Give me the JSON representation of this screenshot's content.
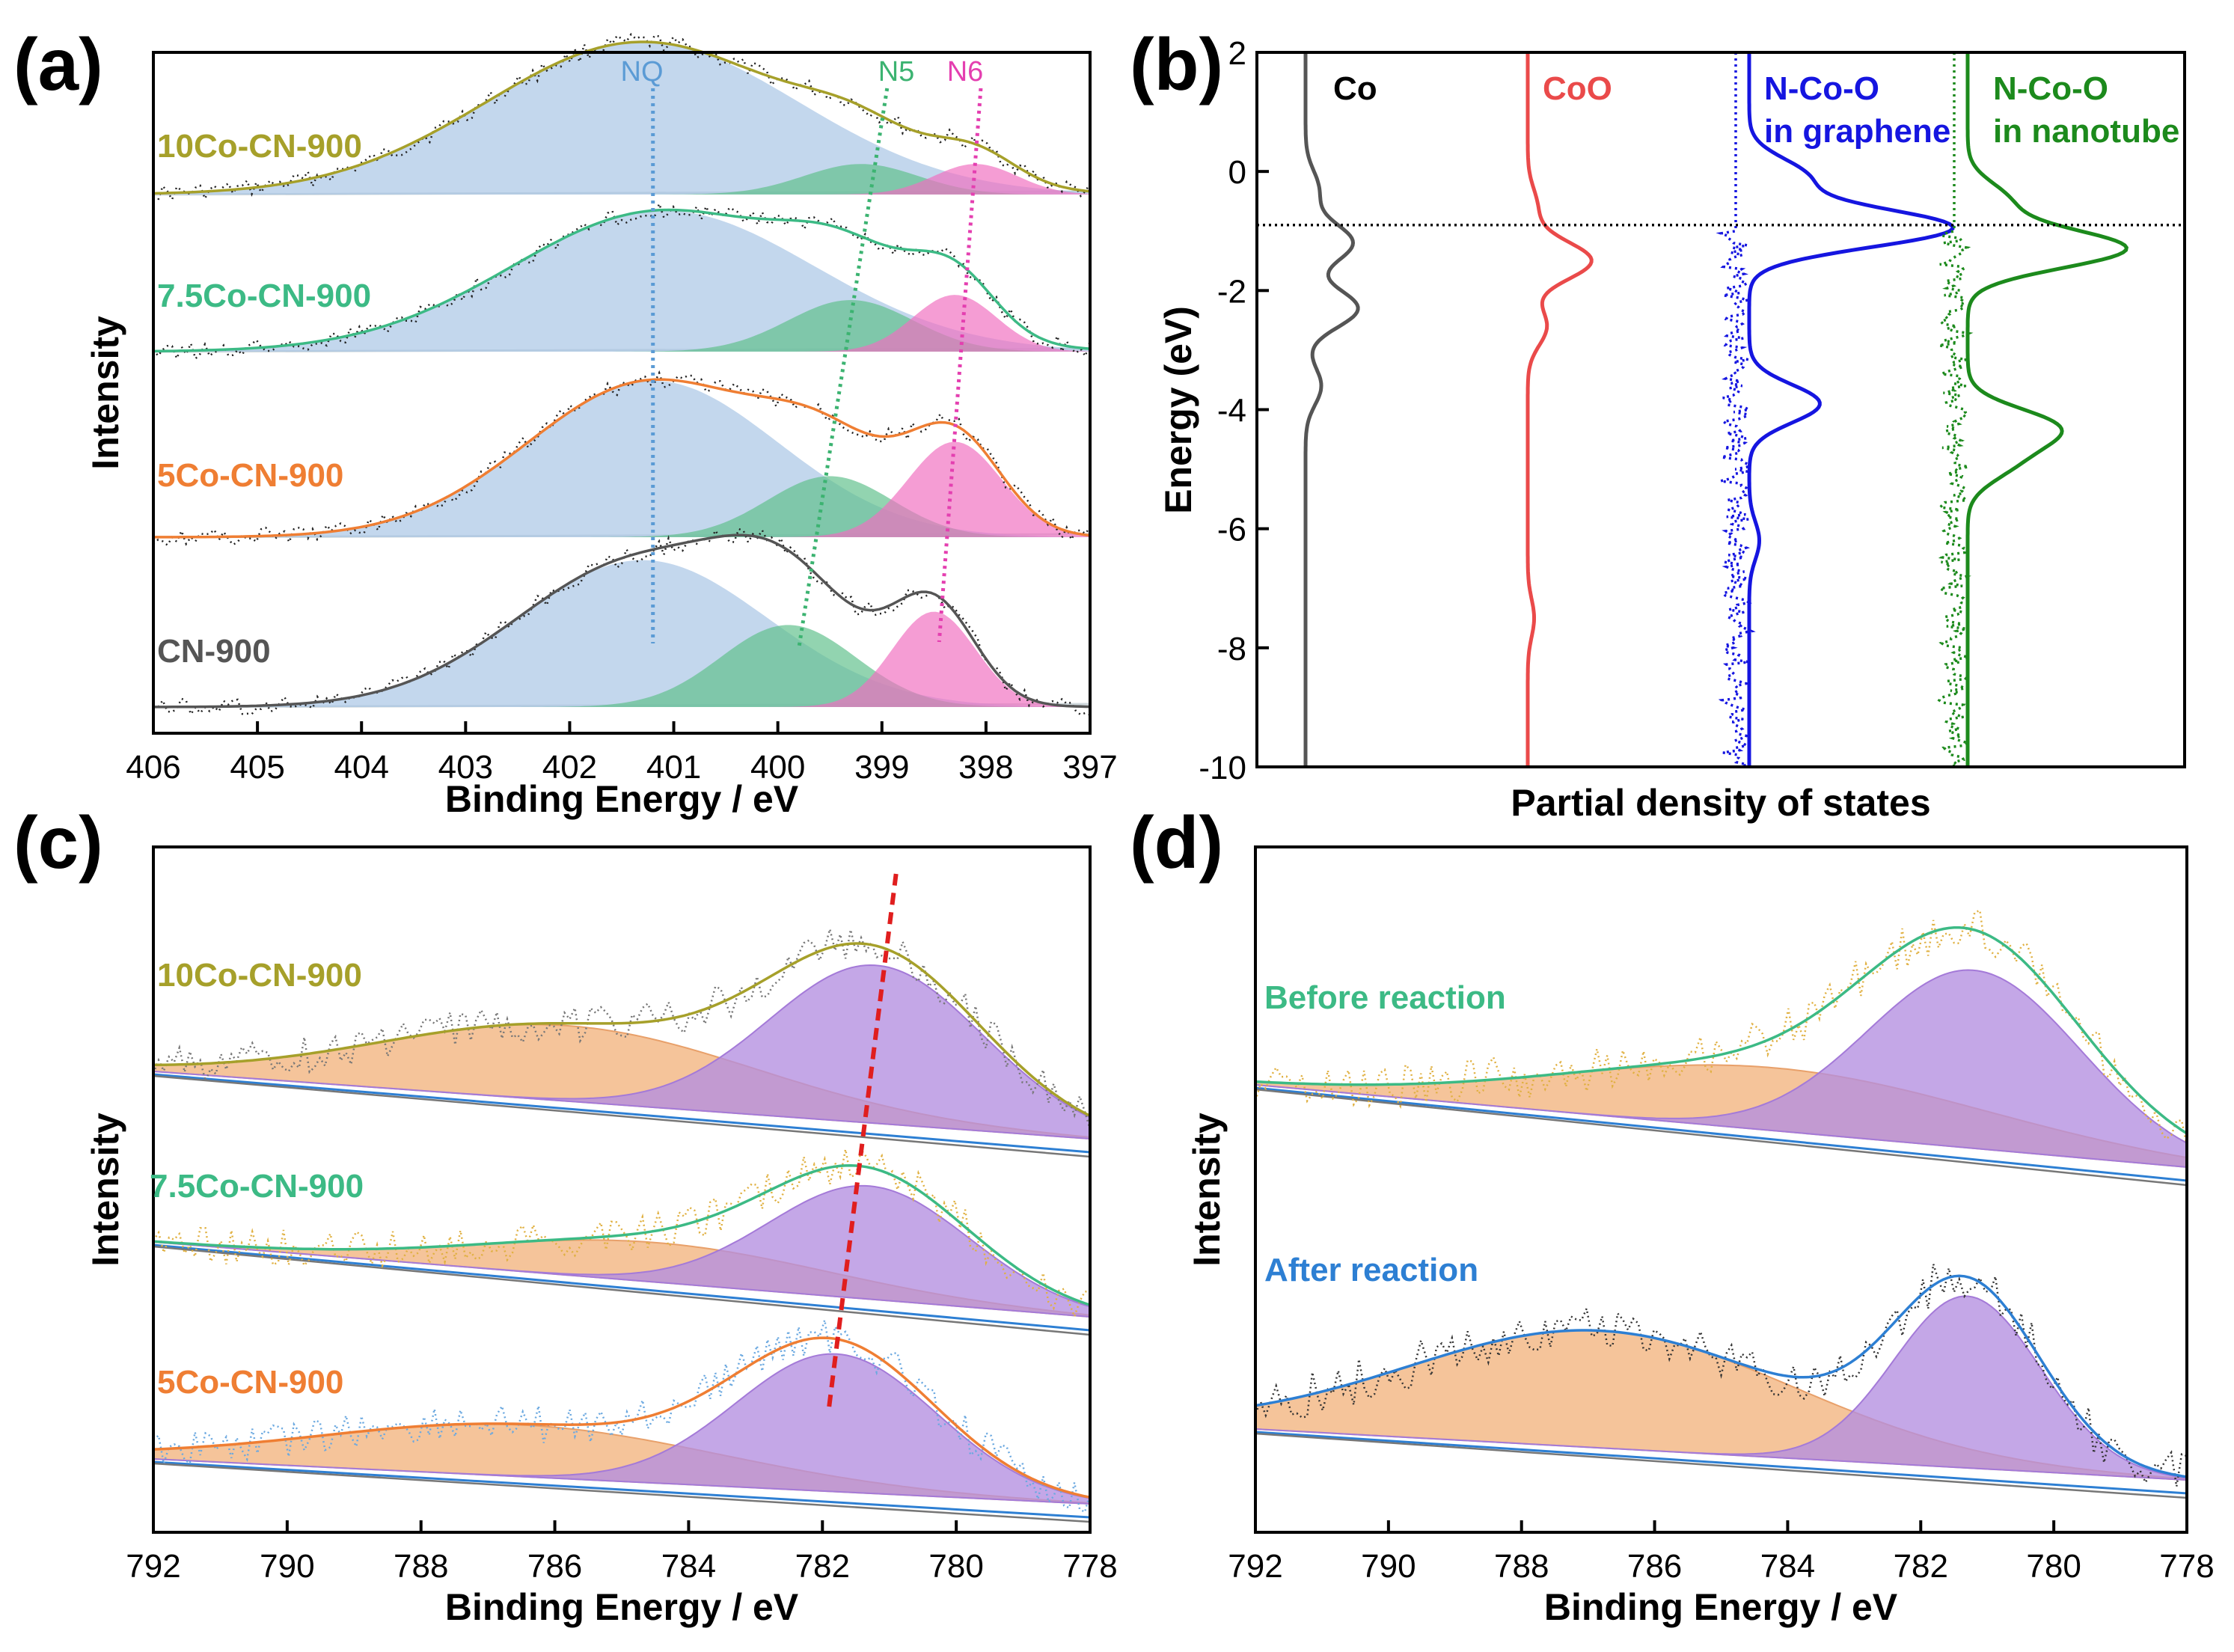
{
  "figure": {
    "panels": [
      {
        "id": "a",
        "label": "(a)"
      },
      {
        "id": "b",
        "label": "(b)"
      },
      {
        "id": "c",
        "label": "(c)"
      },
      {
        "id": "d",
        "label": "(d)"
      }
    ]
  },
  "colors": {
    "nq_fill": "#a7c4e5",
    "n5_fill": "#5fbf8a",
    "n6_fill": "#f06fc0",
    "co_peak_fill": "#b48ee0",
    "sat_fill": "#f2b37e",
    "10co": "#a6a02a",
    "7.5co": "#3cba85",
    "5co": "#ef7e33",
    "cn": "#555555",
    "blue": "#2d7fd3",
    "dos_co": "#555555",
    "dos_coo": "#ea4a4a",
    "dos_graphene": "#1515e0",
    "dos_nanotube": "#1c8a1c"
  },
  "chart_data": [
    {
      "id": "a",
      "type": "line",
      "xlabel": "Binding Energy / eV",
      "ylabel": "Intensity",
      "xlim": [
        406,
        397
      ],
      "xticks": [
        "406",
        "405",
        "404",
        "403",
        "402",
        "401",
        "400",
        "399",
        "398",
        "397"
      ],
      "peak_labels": [
        {
          "text": "NQ"
        },
        {
          "text": "N5"
        },
        {
          "text": "N6"
        }
      ],
      "series": [
        {
          "name": "10Co-CN-900",
          "components": [
            {
              "peak": "NQ",
              "center": 401.3,
              "sigma": 1.5,
              "amp": 0.85
            },
            {
              "peak": "N5",
              "center": 399.2,
              "sigma": 0.55,
              "amp": 0.17
            },
            {
              "peak": "N6",
              "center": 398.1,
              "sigma": 0.4,
              "amp": 0.17
            }
          ]
        },
        {
          "name": "7.5Co-CN-900",
          "components": [
            {
              "peak": "NQ",
              "center": 401.1,
              "sigma": 1.45,
              "amp": 0.82
            },
            {
              "peak": "N5",
              "center": 399.3,
              "sigma": 0.6,
              "amp": 0.3
            },
            {
              "peak": "N6",
              "center": 398.3,
              "sigma": 0.4,
              "amp": 0.33
            }
          ]
        },
        {
          "name": "5Co-CN-900",
          "components": [
            {
              "peak": "NQ",
              "center": 401.2,
              "sigma": 1.2,
              "amp": 0.82
            },
            {
              "peak": "N5",
              "center": 399.5,
              "sigma": 0.6,
              "amp": 0.32
            },
            {
              "peak": "N6",
              "center": 398.3,
              "sigma": 0.45,
              "amp": 0.5
            }
          ]
        },
        {
          "name": "CN-900",
          "components": [
            {
              "peak": "NQ",
              "center": 401.3,
              "sigma": 1.2,
              "amp": 0.77
            },
            {
              "peak": "N5",
              "center": 399.9,
              "sigma": 0.65,
              "amp": 0.43
            },
            {
              "peak": "N6",
              "center": 398.5,
              "sigma": 0.4,
              "amp": 0.5
            }
          ]
        }
      ]
    },
    {
      "id": "b",
      "type": "line",
      "xlabel": "Partial density of states",
      "ylabel": "Energy (eV)",
      "ylim": [
        -10,
        2
      ],
      "yticks": [
        "2",
        "0",
        "-2",
        "-4",
        "-6",
        "-8",
        "-10"
      ],
      "fermi_level": -0.9,
      "series": [
        {
          "name": "Co",
          "peaks": [
            {
              "energy": -0.3,
              "height": 0.25
            },
            {
              "energy": -1.2,
              "height": 0.9
            },
            {
              "energy": -2.3,
              "height": 1.0
            },
            {
              "energy": -3.6,
              "height": 0.3
            }
          ]
        },
        {
          "name": "CoO",
          "peaks": [
            {
              "energy": -0.6,
              "height": 0.15
            },
            {
              "energy": -1.5,
              "height": 1.0
            },
            {
              "energy": -2.6,
              "height": 0.3
            },
            {
              "energy": -7.5,
              "height": 0.1
            }
          ]
        },
        {
          "name": "N-Co-O in graphene",
          "label_lines": [
            "N-Co-O",
            "in graphene"
          ],
          "peaks": [
            {
              "energy": -0.1,
              "height": 0.28
            },
            {
              "energy": -0.95,
              "height": 1.0
            },
            {
              "energy": -3.9,
              "height": 0.35
            },
            {
              "energy": -6.2,
              "height": 0.05
            }
          ]
        },
        {
          "name": "N-Co-O in nanotube",
          "label_lines": [
            "N-Co-O",
            "in nanotube"
          ],
          "peaks": [
            {
              "energy": -0.5,
              "height": 0.25
            },
            {
              "energy": -1.3,
              "height": 1.0
            },
            {
              "energy": -4.3,
              "height": 0.55
            },
            {
              "energy": -4.9,
              "height": 0.25
            }
          ]
        }
      ]
    },
    {
      "id": "c",
      "type": "line",
      "xlabel": "Binding Energy / eV",
      "ylabel": "Intensity",
      "xlim": [
        792,
        778
      ],
      "xticks": [
        "792",
        "790",
        "788",
        "786",
        "784",
        "782",
        "780",
        "778"
      ],
      "series": [
        {
          "name": "10Co-CN-900",
          "components": [
            {
              "peak": "Co",
              "center": 781.2,
              "sigma": 1.6,
              "amp": 0.88
            },
            {
              "peak": "satellite",
              "center": 785.8,
              "sigma": 2.8,
              "amp": 0.42
            }
          ]
        },
        {
          "name": "7.5Co-CN-900",
          "components": [
            {
              "peak": "Co",
              "center": 781.3,
              "sigma": 1.5,
              "amp": 0.63
            },
            {
              "peak": "satellite",
              "center": 784.5,
              "sigma": 2.6,
              "amp": 0.22
            }
          ]
        },
        {
          "name": "5Co-CN-900",
          "components": [
            {
              "peak": "Co",
              "center": 781.8,
              "sigma": 1.5,
              "amp": 0.8
            },
            {
              "peak": "satellite",
              "center": 786.5,
              "sigma": 3.0,
              "amp": 0.3
            }
          ]
        }
      ],
      "shift_line": {
        "from": 781.9,
        "to": 780.9
      }
    },
    {
      "id": "d",
      "type": "line",
      "xlabel": "Binding Energy / eV",
      "ylabel": "Intensity",
      "xlim": [
        792,
        778
      ],
      "xticks": [
        "792",
        "790",
        "788",
        "786",
        "784",
        "782",
        "780",
        "778"
      ],
      "series": [
        {
          "name": "Before reaction",
          "components": [
            {
              "peak": "Co",
              "center": 781.2,
              "sigma": 1.6,
              "amp": 0.85
            },
            {
              "peak": "satellite",
              "center": 784.2,
              "sigma": 3.2,
              "amp": 0.3
            }
          ]
        },
        {
          "name": "After reaction",
          "components": [
            {
              "peak": "Co",
              "center": 781.3,
              "sigma": 1.1,
              "amp": 0.85
            },
            {
              "peak": "satellite",
              "center": 786.8,
              "sigma": 2.9,
              "amp": 0.58
            }
          ]
        }
      ]
    }
  ]
}
